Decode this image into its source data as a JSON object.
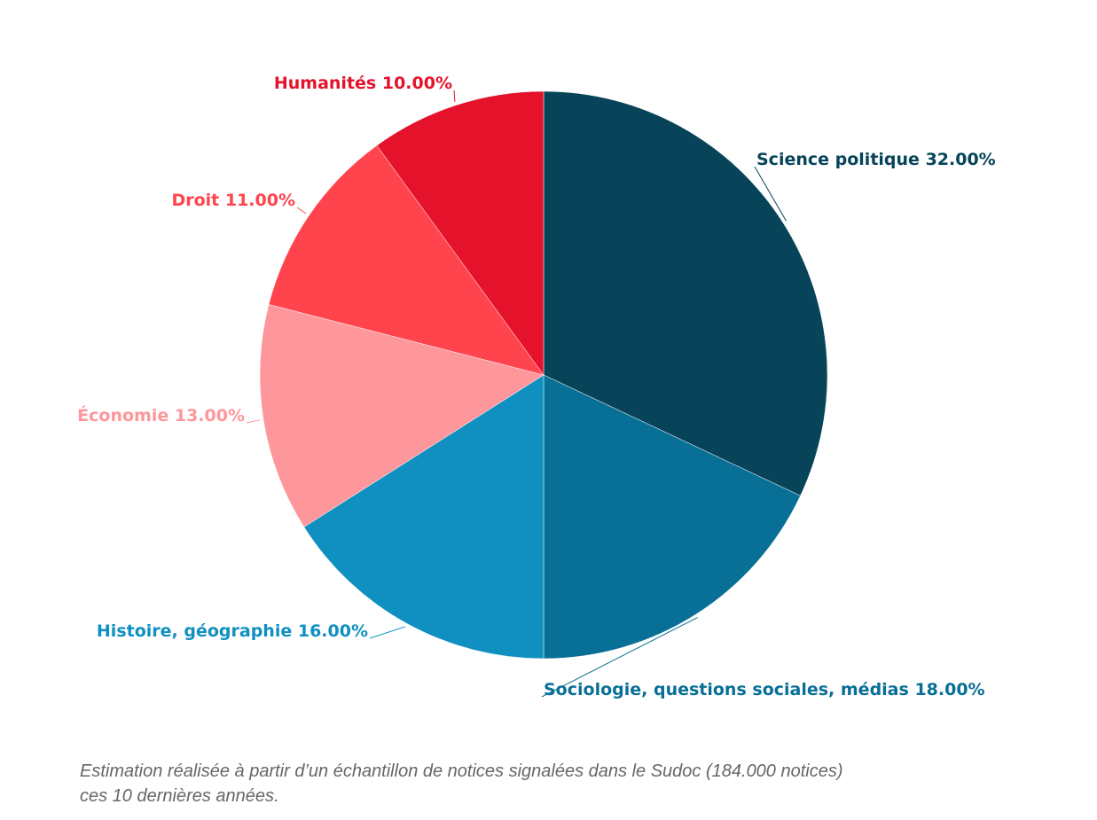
{
  "chart_data": {
    "type": "pie",
    "categories": [
      "Science politique",
      "Sociologie, questions sociales, médias",
      "Histoire, géographie",
      "Économie",
      "Droit",
      "Humanités"
    ],
    "values": [
      32,
      18,
      16,
      13,
      11,
      10
    ],
    "value_labels": [
      "32.00%",
      "18.00%",
      "16.00%",
      "13.00%",
      "11.00%",
      "10.00%"
    ],
    "colors": [
      "#07445a",
      "#086f96",
      "#0f90c0",
      "#fe979b",
      "#ff444d",
      "#e5122c"
    ],
    "caption": [
      "Estimation réalisée à partir d’un échantillon de notices signalées dans le Sudoc (184.000 notices)",
      "ces 10 dernières années."
    ]
  }
}
